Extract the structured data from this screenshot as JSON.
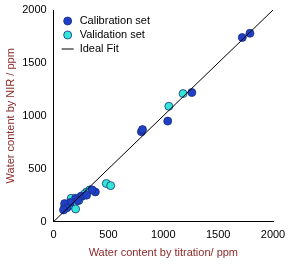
{
  "chart_data": {
    "type": "scatter",
    "x_label": "Water content by titration/ ppm",
    "y_label": "Water content by NIR / ppm",
    "xlim": [
      0,
      2000
    ],
    "xticks": [
      0,
      500,
      1000,
      1500,
      2000
    ],
    "ylim": [
      0,
      2000
    ],
    "yticks": [
      0,
      500,
      1000,
      1500,
      2000
    ],
    "grid": false,
    "legend": "upper left",
    "series": [
      {
        "name": "Calibration set",
        "color": "#1f3fc4",
        "type": "scatter",
        "marker": "circle",
        "x": [
          1720,
          1790,
          1260,
          1040,
          800,
          810,
          380,
          350,
          250,
          200,
          150,
          100,
          300,
          220,
          120,
          90
        ],
        "values": [
          1740,
          1780,
          1220,
          950,
          850,
          870,
          280,
          300,
          240,
          220,
          180,
          170,
          250,
          200,
          130,
          110
        ]
      },
      {
        "name": "Validation set",
        "color": "#33e6d6",
        "type": "scatter",
        "marker": "circle",
        "x": [
          1180,
          1050,
          480,
          520,
          300,
          260,
          180,
          140,
          200,
          230,
          330,
          100,
          160,
          280
        ],
        "values": [
          1210,
          1090,
          360,
          340,
          280,
          240,
          180,
          150,
          120,
          200,
          300,
          140,
          220,
          260
        ]
      },
      {
        "name": "Ideal Fit",
        "color": "#000000",
        "type": "line",
        "line_style": "solid",
        "x": [
          0,
          2000
        ],
        "values": [
          0,
          2000
        ]
      }
    ]
  }
}
